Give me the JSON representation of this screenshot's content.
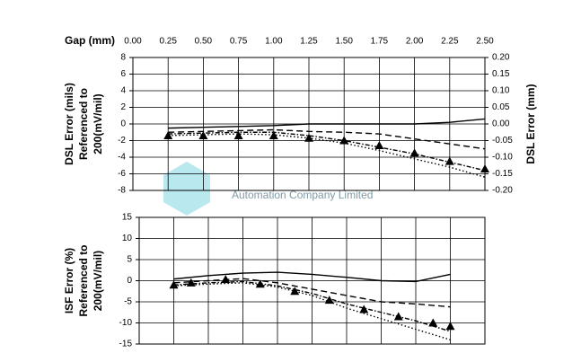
{
  "chart_data": [
    {
      "type": "line",
      "xlabel": "Gap (mm)",
      "ylabel": [
        "DSL Error (mils)",
        "Referenced to",
        "200(mV/mil)"
      ],
      "y2label": "DSL Error (mm)",
      "watermark": "Automation Company Limited",
      "xlim": [
        0,
        2.5
      ],
      "xticks": [
        {
          "value": 0,
          "label": "0.00"
        },
        0.25,
        {
          "value": 0.5,
          "label": "0.50"
        },
        0.75,
        {
          "value": 1,
          "label": "1.00"
        },
        1.25,
        {
          "value": 1.5,
          "label": "1.50"
        },
        1.75,
        {
          "value": 2,
          "label": "2.00"
        },
        2.25,
        {
          "value": 2.5,
          "label": "2.50"
        }
      ],
      "ylim": [
        -8,
        8
      ],
      "yticks": [
        8,
        6,
        4,
        2,
        0,
        -2,
        -4,
        -6,
        -8
      ],
      "y2lim": [
        -0.2,
        0.2
      ],
      "y2ticks": [
        {
          "value": 0.2,
          "label": "0.20"
        },
        {
          "value": 0.15,
          "label": "0.15"
        },
        {
          "value": 0.1,
          "label": "0.10"
        },
        {
          "value": 0.05,
          "label": "0.05"
        },
        {
          "value": 0,
          "label": "0.00"
        },
        {
          "value": -0.05,
          "label": "-0.05"
        },
        {
          "value": -0.1,
          "label": "-0.10"
        },
        {
          "value": -0.15,
          "label": "-0.15"
        },
        {
          "value": -0.2,
          "label": "-0.20"
        }
      ],
      "grid": true,
      "x": [
        0.25,
        0.5,
        0.75,
        1,
        1.25,
        1.5,
        1.75,
        2,
        2.25,
        2.5
      ],
      "series": [
        {
          "style": "solid",
          "color": "#000000",
          "values": [
            -0.5,
            -0.4,
            -0.3,
            -0.2,
            0,
            0,
            0,
            0,
            0.2,
            0.6
          ]
        },
        {
          "style": "dashed",
          "color": "#000000",
          "values": [
            -1,
            -0.9,
            -0.8,
            -0.7,
            -0.9,
            -1,
            -1.2,
            -1.8,
            -2.4,
            -3
          ]
        },
        {
          "style": "dashdot",
          "color": "#000000",
          "values": [
            -1.2,
            -1.1,
            -1,
            -1,
            -1.4,
            -2,
            -2.8,
            -3.6,
            -4.6,
            -5.6
          ]
        },
        {
          "style": "dotted",
          "color": "#000000",
          "values": [
            -1.4,
            -1.3,
            -1.2,
            -1.3,
            -1.7,
            -2.3,
            -3.2,
            -4.2,
            -5.2,
            -6.4
          ]
        },
        {
          "marker": "triangle",
          "color": "#000000",
          "values": [
            -1.4,
            -1.4,
            -1.4,
            -1.4,
            -1.7,
            -2,
            -2.6,
            -3.5,
            -4.5,
            -5.4
          ]
        }
      ]
    },
    {
      "type": "line",
      "ylabel": [
        "ISF Error (%)",
        "Referenced to",
        "200(mV/mil)"
      ],
      "xlim": [
        0,
        2.5
      ],
      "ylim": [
        -15,
        15
      ],
      "yticks": [
        15,
        10,
        5,
        0,
        -5,
        -10,
        -15
      ],
      "grid": true,
      "x": [
        0.25,
        0.5,
        0.75,
        1,
        1.25,
        1.5,
        1.75,
        2,
        2.25
      ],
      "series": [
        {
          "style": "solid",
          "color": "#000000",
          "values": [
            0.4,
            1.2,
            1.8,
            2,
            1.5,
            0.8,
            0,
            -0.2,
            1.5
          ]
        },
        {
          "style": "dashed",
          "color": "#000000",
          "values": [
            -0.5,
            0,
            0.5,
            -0.5,
            -2,
            -3.5,
            -5,
            -5.5,
            -6.2
          ]
        },
        {
          "style": "dashdot",
          "color": "#000000",
          "values": [
            -1,
            -0.5,
            -0.2,
            -1.2,
            -3,
            -5.5,
            -7.5,
            -9.5,
            -12
          ]
        },
        {
          "style": "dotted",
          "color": "#000000",
          "values": [
            -1.2,
            -0.8,
            -0.5,
            -1.5,
            -3.5,
            -6.5,
            -9,
            -11.5,
            -14
          ]
        },
        {
          "marker": "triangle",
          "color": "#000000",
          "x": [
            0.25,
            0.375,
            0.625,
            0.875,
            1.125,
            1.375,
            1.625,
            1.875,
            2.125,
            2.25
          ],
          "values": [
            -1,
            -0.5,
            0.3,
            -0.8,
            -2.5,
            -4.6,
            -6.8,
            -8.5,
            -10,
            -10.8
          ]
        }
      ]
    }
  ]
}
